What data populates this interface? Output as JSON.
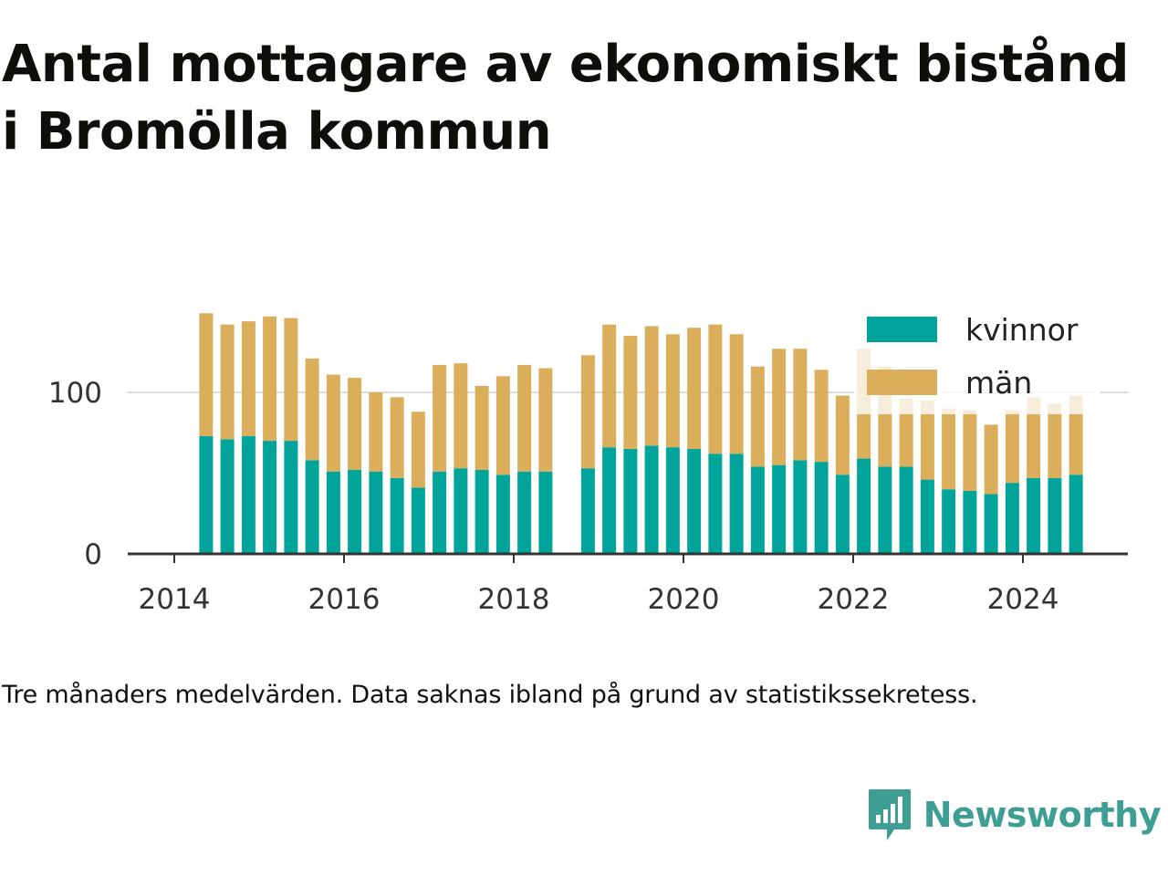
{
  "title": "Antal mottagare av ekonomiskt bistånd i Bromölla kommun",
  "note": "Tre månaders medelvärden. Data saknas ibland på grund av statistikssekretess.",
  "brand": {
    "name": "Newsworthy",
    "logo_icon": "bar-chart-speech-bubble-icon"
  },
  "colors": {
    "kvinnor": "#00a49a",
    "man": "#dbae5c",
    "axis": "#333333",
    "grid": "#dddddd",
    "brand": "#3e9e94"
  },
  "chart_data": {
    "type": "bar",
    "stacked": true,
    "x_axis_ticks": [
      "2014",
      "2016",
      "2018",
      "2020",
      "2022",
      "2024"
    ],
    "y_axis_ticks": [
      0,
      100
    ],
    "ylim": [
      0,
      155
    ],
    "grid": "horizontal at 100",
    "legend_position": "top-right",
    "x": [
      "2014-05",
      "2014-08",
      "2014-11",
      "2015-02",
      "2015-05",
      "2015-08",
      "2015-11",
      "2016-02",
      "2016-05",
      "2016-08",
      "2016-11",
      "2017-02",
      "2017-05",
      "2017-08",
      "2017-11",
      "2018-02",
      "2018-05",
      "2018-08",
      "2018-11",
      "2019-02",
      "2019-05",
      "2019-08",
      "2019-11",
      "2020-02",
      "2020-05",
      "2020-08",
      "2020-11",
      "2021-02",
      "2021-05",
      "2021-08",
      "2021-11",
      "2022-02",
      "2022-05",
      "2022-08",
      "2022-11",
      "2023-02",
      "2023-05",
      "2023-08",
      "2023-11",
      "2024-02",
      "2024-05",
      "2024-08"
    ],
    "series": [
      {
        "name": "kvinnor",
        "values": [
          73,
          71,
          73,
          70,
          70,
          58,
          51,
          52,
          51,
          47,
          41,
          51,
          53,
          52,
          49,
          51,
          51,
          null,
          53,
          66,
          65,
          67,
          66,
          65,
          62,
          62,
          54,
          55,
          58,
          57,
          49,
          59,
          54,
          54,
          46,
          40,
          39,
          37,
          44,
          47,
          47,
          49
        ]
      },
      {
        "name": "män",
        "values": [
          76,
          71,
          71,
          77,
          76,
          63,
          60,
          57,
          49,
          50,
          47,
          66,
          65,
          52,
          61,
          66,
          64,
          null,
          70,
          76,
          70,
          74,
          70,
          75,
          80,
          74,
          62,
          72,
          69,
          57,
          49,
          68,
          62,
          42,
          49,
          50,
          50,
          43,
          45,
          50,
          46,
          49
        ]
      }
    ]
  }
}
